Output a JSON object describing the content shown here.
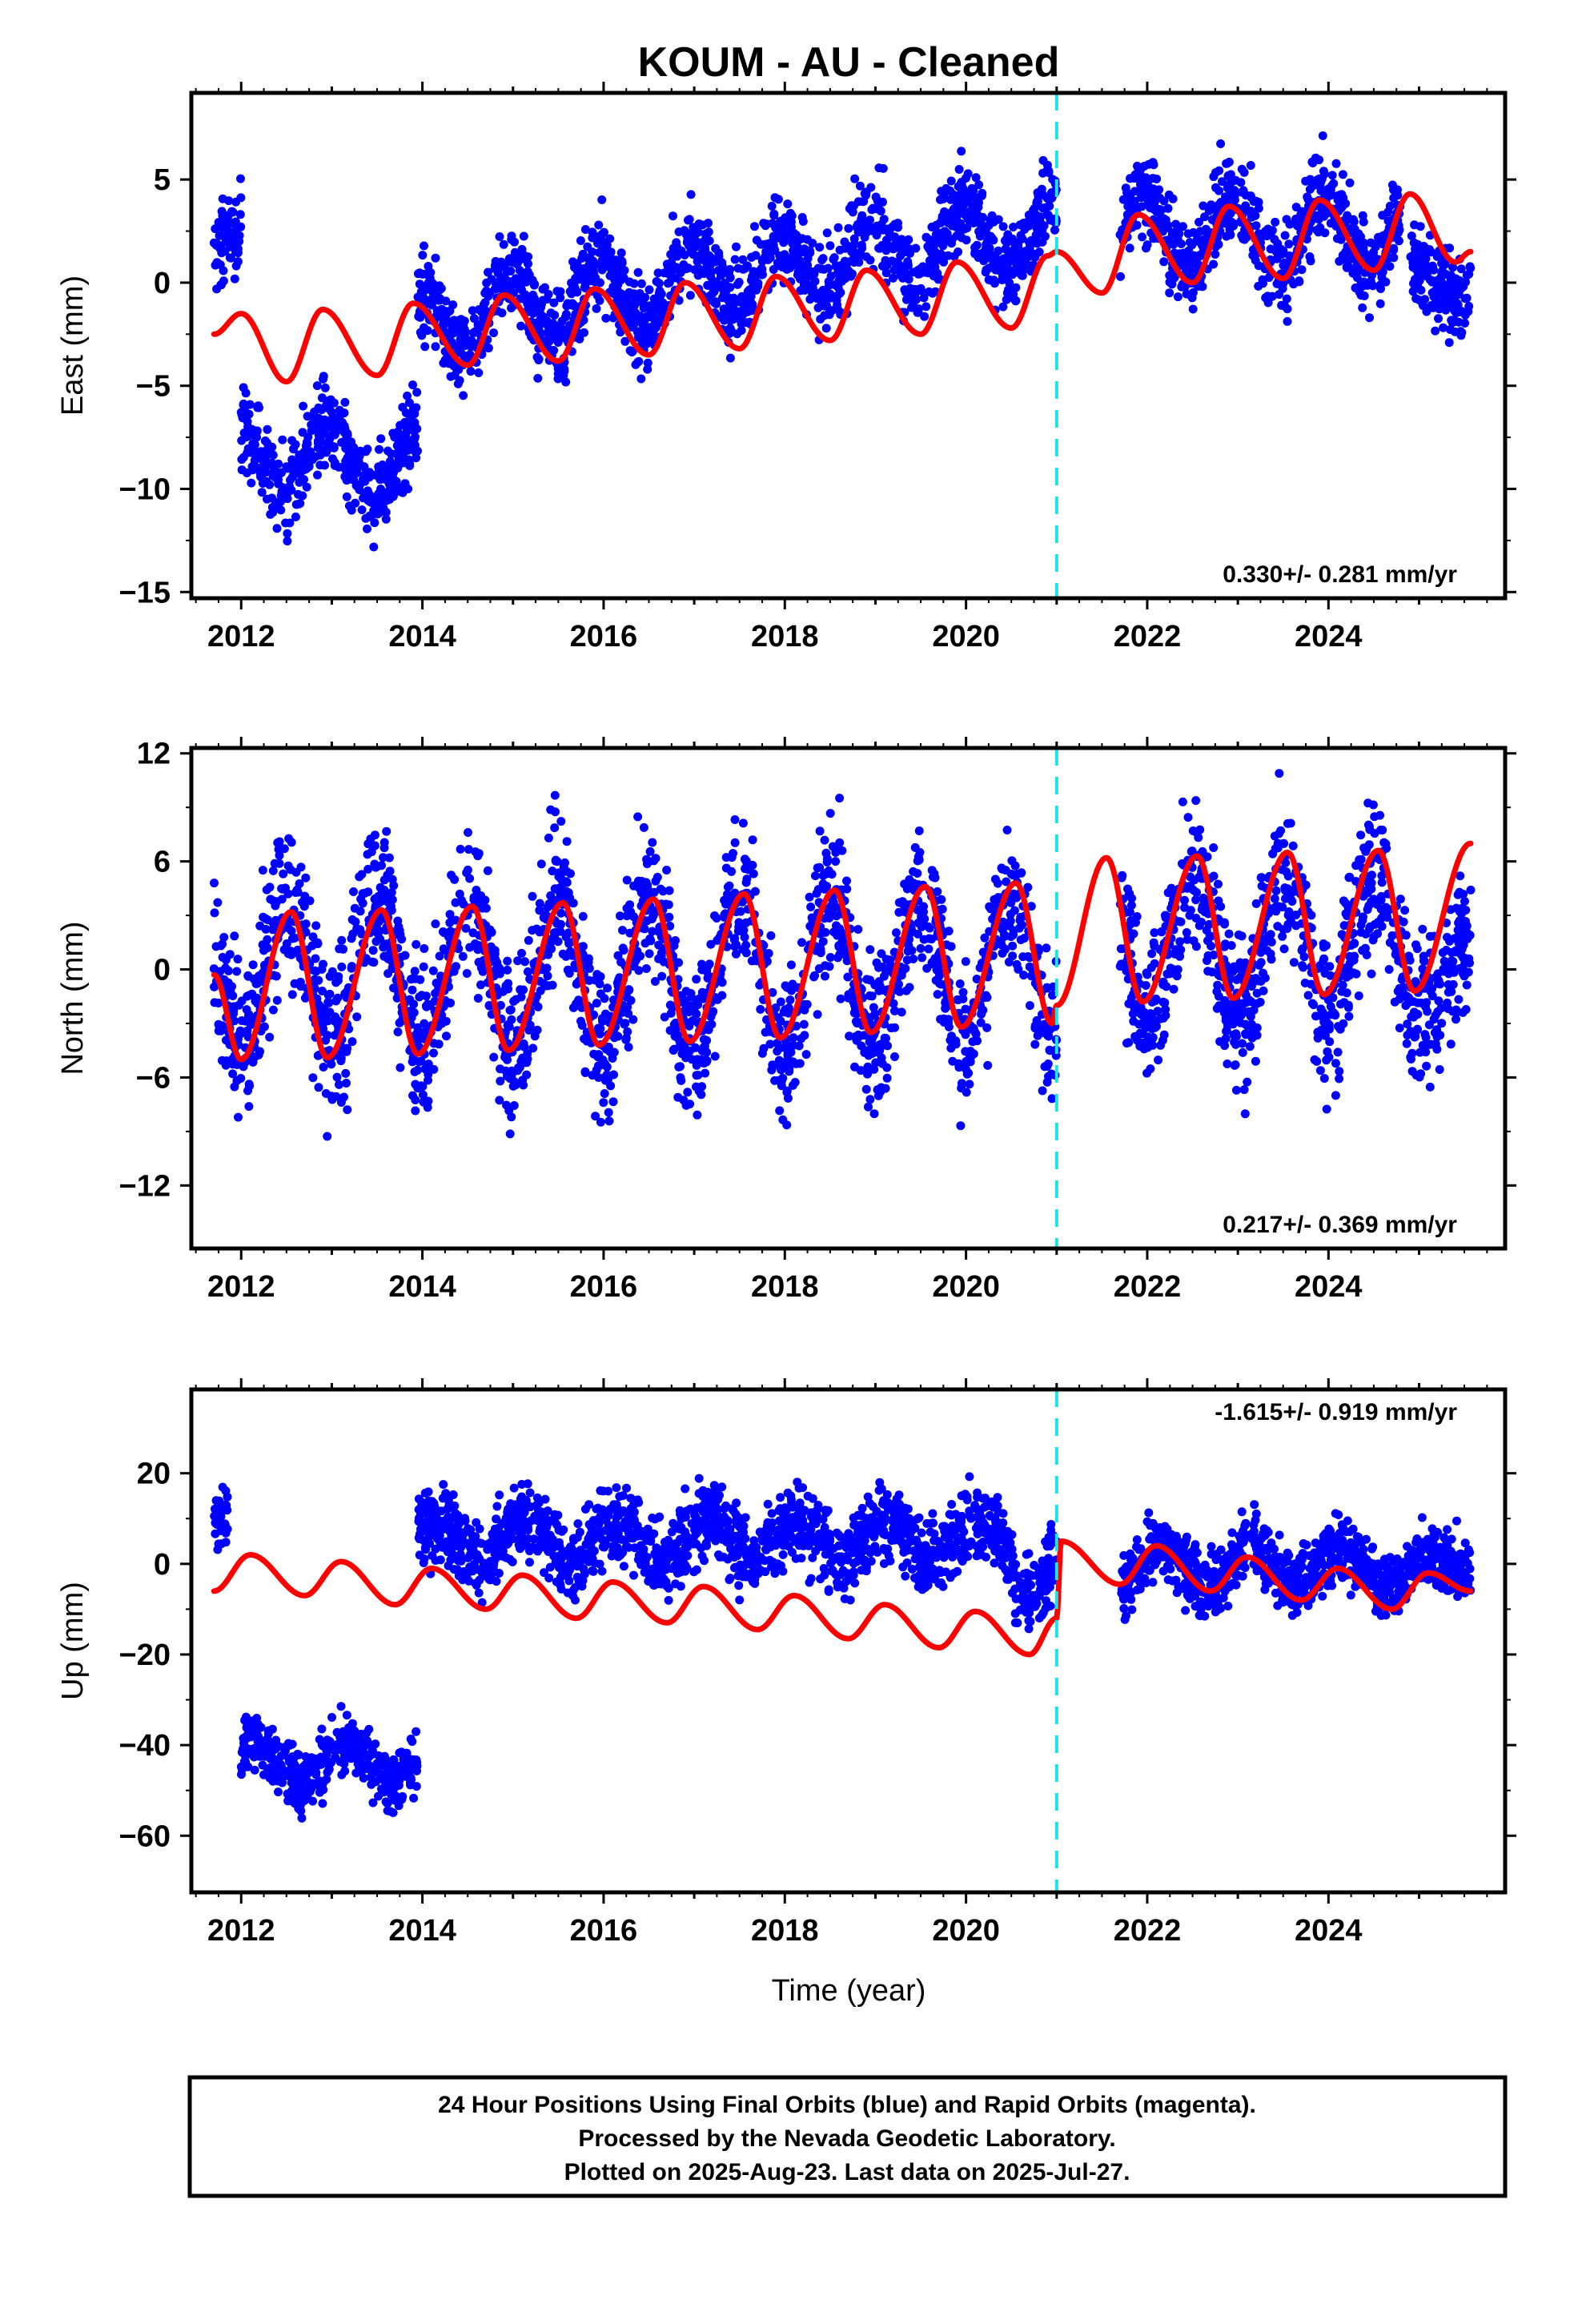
{
  "chart_data": {
    "type": "scatter",
    "title": "KOUM  - AU - Cleaned",
    "x_axis": {
      "label": "Time (year)",
      "ticks": [
        "2012",
        "2014",
        "2016",
        "2018",
        "2020",
        "2022",
        "2024"
      ],
      "range": [
        2011.45,
        2025.95
      ]
    },
    "equipment_change_year": 2021.0,
    "last_data_year": 2025.57,
    "panels": [
      {
        "id": "east",
        "ylabel": "East (mm)",
        "yticks": [
          5,
          0,
          -5,
          -10,
          -15
        ],
        "ylim": [
          -15.3,
          9.2
        ],
        "rate_text": "0.330+/- 0.281 mm/yr",
        "rate_position": "bottom-right",
        "series": [
          {
            "name": "",
            "type": "scatter",
            "color": "#0000ff",
            "segments": [
              {
                "x": [
                  2011.7,
                  2012.0
                ],
                "approx_center": 1.0,
                "spread": 1.5
              },
              {
                "x": [
                  2012.0,
                  2013.95
                ],
                "approx_center": -8.5,
                "spread": 1.5
              },
              {
                "x": [
                  2013.95,
                  2021.0
                ],
                "approx_center_start": -2.0,
                "approx_center_end": 3.0,
                "spread": 1.5
              },
              {
                "x": [
                  2021.7,
                  2024.8
                ],
                "approx_center": 2.5,
                "spread": 1.5
              },
              {
                "x": [
                  2024.9,
                  2025.57
                ],
                "approx_center": -0.5,
                "spread": 1.5
              }
            ]
          },
          {
            "name": "",
            "type": "line",
            "color": "#ff0000",
            "x": [
              2011.7,
              2012.0,
              2012.5,
              2012.9,
              2013.5,
              2013.9,
              2014.5,
              2014.9,
              2015.5,
              2015.9,
              2016.5,
              2016.9,
              2017.5,
              2017.9,
              2018.5,
              2018.9,
              2019.5,
              2019.9,
              2020.5,
              2020.9,
              2021.0,
              2021.5,
              2021.9,
              2022.5,
              2022.9,
              2023.5,
              2023.9,
              2024.5,
              2024.9,
              2025.4,
              2025.57
            ],
            "y": [
              -2.5,
              -1.5,
              -4.8,
              -1.3,
              -4.5,
              -1.0,
              -4.0,
              -0.6,
              -3.8,
              -0.3,
              -3.5,
              0.0,
              -3.2,
              0.3,
              -2.8,
              0.6,
              -2.5,
              1.0,
              -2.2,
              1.3,
              1.5,
              -0.5,
              3.3,
              0.0,
              3.7,
              0.2,
              4.0,
              0.6,
              4.3,
              1.0,
              1.5
            ]
          }
        ]
      },
      {
        "id": "north",
        "ylabel": "North (mm)",
        "yticks": [
          12,
          6,
          0,
          -6,
          -12
        ],
        "ylim": [
          -15.5,
          12.3
        ],
        "rate_text": "0.217+/- 0.369 mm/yr",
        "rate_position": "bottom-right",
        "series": [
          {
            "name": "",
            "type": "scatter",
            "color": "#0000ff",
            "segments": [
              {
                "x": [
                  2011.7,
                  2021.0
                ],
                "approx_center": 0.0,
                "spread": 3.0
              },
              {
                "x": [
                  2021.7,
                  2025.57
                ],
                "approx_center": 1.5,
                "spread": 3.0
              }
            ]
          },
          {
            "name": "",
            "type": "line",
            "color": "#ff0000",
            "x": [
              2011.7,
              2012.0,
              2012.55,
              2012.95,
              2013.55,
              2013.95,
              2014.55,
              2014.95,
              2015.55,
              2015.95,
              2016.55,
              2016.95,
              2017.55,
              2017.95,
              2018.55,
              2018.95,
              2019.55,
              2019.95,
              2020.55,
              2020.95,
              2021.0,
              2021.55,
              2021.95,
              2022.55,
              2022.95,
              2023.55,
              2023.95,
              2024.55,
              2024.95,
              2025.57
            ],
            "y": [
              -0.3,
              -5.0,
              3.2,
              -4.9,
              3.3,
              -4.7,
              3.5,
              -4.5,
              3.7,
              -4.2,
              3.9,
              -4.0,
              4.2,
              -3.8,
              4.4,
              -3.5,
              4.6,
              -3.2,
              4.8,
              -3.0,
              -2.0,
              6.2,
              -1.8,
              6.3,
              -1.6,
              6.5,
              -1.4,
              6.6,
              -1.2,
              7.0
            ]
          }
        ]
      },
      {
        "id": "up",
        "ylabel": "Up (mm)",
        "yticks": [
          20,
          0,
          -20,
          -40,
          -60
        ],
        "ylim": [
          -72.5,
          38.5
        ],
        "rate_text": "-1.615+/- 0.919 mm/yr",
        "rate_position": "top-right",
        "series": [
          {
            "name": "",
            "type": "scatter",
            "color": "#0000ff",
            "segments": [
              {
                "x": [
                  2011.7,
                  2011.85
                ],
                "approx_center": 12.0,
                "spread": 5.0
              },
              {
                "x": [
                  2012.0,
                  2013.95
                ],
                "approx_center": -44.0,
                "spread": 5.0
              },
              {
                "x": [
                  2013.95,
                  2021.0
                ],
                "approx_center": 5.0,
                "spread": 6.0
              },
              {
                "x": [
                  2021.7,
                  2025.57
                ],
                "approx_center": -1.0,
                "spread": 5.0
              }
            ]
          },
          {
            "name": "",
            "type": "line",
            "color": "#ff0000",
            "x": [
              2011.7,
              2012.1,
              2012.7,
              2013.1,
              2013.7,
              2014.1,
              2014.7,
              2015.1,
              2015.7,
              2016.1,
              2016.7,
              2017.1,
              2017.7,
              2018.1,
              2018.7,
              2019.1,
              2019.7,
              2020.1,
              2020.7,
              2021.0,
              2021.05,
              2021.7,
              2022.1,
              2022.7,
              2023.1,
              2023.7,
              2024.1,
              2024.7,
              2025.1,
              2025.57
            ],
            "y": [
              -6.0,
              2.0,
              -7.0,
              0.5,
              -9.0,
              -1.0,
              -10.0,
              -2.5,
              -12.0,
              -4.0,
              -13.0,
              -5.0,
              -14.5,
              -7.0,
              -16.5,
              -9.0,
              -18.5,
              -10.5,
              -20.0,
              -12.0,
              5.0,
              -4.5,
              4.0,
              -6.0,
              1.5,
              -8.0,
              -1.0,
              -10.0,
              -2.0,
              -6.0
            ]
          }
        ]
      }
    ]
  },
  "footer": {
    "line1": "24 Hour Positions Using Final Orbits (blue) and Rapid Orbits (magenta).",
    "line2": "Processed by the Nevada Geodetic Laboratory.",
    "line3": "Plotted on 2025-Aug-23. Last data on 2025-Jul-27."
  }
}
